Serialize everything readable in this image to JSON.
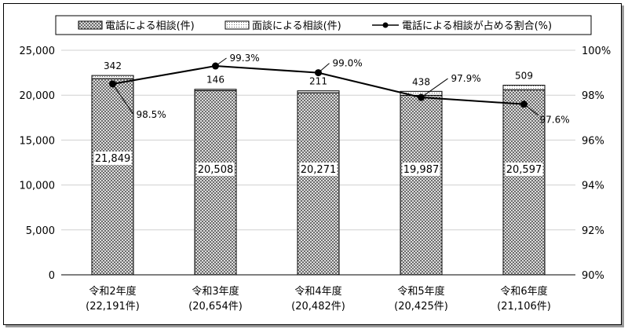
{
  "chart_data": {
    "type": "bar",
    "categories": [
      [
        "令和2年度",
        "(22,191件)"
      ],
      [
        "令和3年度",
        "(20,654件)"
      ],
      [
        "令和4年度",
        "(20,482件)"
      ],
      [
        "令和5年度",
        "(20,425件)"
      ],
      [
        "令和6年度",
        "(21,106件)"
      ]
    ],
    "series": [
      {
        "name": "電話による相談(件)",
        "kind": "bar",
        "values": [
          21849,
          20508,
          20271,
          19987,
          20597
        ],
        "value_labels": [
          "21,849",
          "20,508",
          "20,271",
          "19,987",
          "20,597"
        ]
      },
      {
        "name": "面談による相談(件)",
        "kind": "bar",
        "values": [
          342,
          146,
          211,
          438,
          509
        ],
        "value_labels": [
          "342",
          "146",
          "211",
          "438",
          "509"
        ]
      },
      {
        "name": "電話による相談が占める割合(%)",
        "kind": "line",
        "axis": "right",
        "values": [
          98.5,
          99.3,
          99.0,
          97.9,
          97.6
        ],
        "value_labels": [
          "98.5%",
          "99.3%",
          "99.0%",
          "97.9%",
          "97.6%"
        ]
      }
    ],
    "y_left": {
      "min": 0,
      "max": 25000,
      "ticks": [
        "0",
        "5,000",
        "10,000",
        "15,000",
        "20,000",
        "25,000"
      ],
      "tick_values": [
        0,
        5000,
        10000,
        15000,
        20000,
        25000
      ]
    },
    "y_right": {
      "min": 90,
      "max": 100,
      "ticks": [
        "90%",
        "92%",
        "94%",
        "96%",
        "98%",
        "100%"
      ],
      "tick_values": [
        90,
        92,
        94,
        96,
        98,
        100
      ]
    },
    "grid": true,
    "legend": "top",
    "colors": {
      "line": "#000000",
      "bar_outline": "#000000",
      "gridline": "#d0d0d0"
    }
  }
}
